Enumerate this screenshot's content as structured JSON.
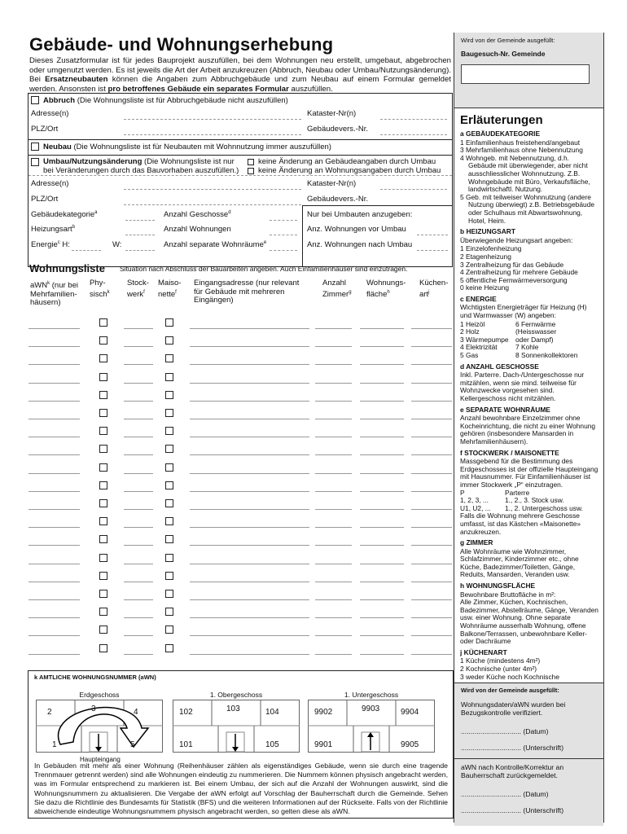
{
  "title": "Gebäude- und Wohnungserhebung",
  "intro": {
    "p1": "Dieses Zusatzformular ist für jedes Bauprojekt auszufüllen, bei dem Wohnungen neu erstellt, umgebaut, abgebrochen oder umgenutzt werden. Es ist jeweils die Art der Arbeit anzukreuzen (Abbruch, Neubau oder Umbau/Nutzungsänderung). Bei ",
    "b1": "Ersatzneubauten",
    "p2": " können die Angaben zum Abbruchgebäude und zum Neubau auf einem Formular gemeldet werden. Ansonsten ist ",
    "b2": "pro betroffenes Gebäude ein separates Formular",
    "p3": " auszufüllen."
  },
  "abbruch": {
    "label": "Abbruch",
    "note": "(Die Wohnungsliste ist für Abbruchgebäude nicht auszufüllen)",
    "adresse": "Adresse(n)",
    "kataster": "Kataster-Nr(n)",
    "plz": "PLZ/Ort",
    "gebvers": "Gebäudevers.-Nr."
  },
  "neubau": {
    "label": "Neubau",
    "note": "(Die Wohnungsliste ist für Neubauten mit Wohnnutzung immer auszufüllen)"
  },
  "umbau": {
    "label": "Umbau/Nutzungsänderung",
    "note1": "(Die Wohnungsliste ist nur",
    "note2": "bei Veränderungen durch das Bauvorhaben auszufüllen.)",
    "opt1": "keine Änderung an Gebäudeangaben durch Umbau",
    "opt2": "keine Änderung an Wohnungsangaben durch Umbau",
    "adresse": "Adresse(n)",
    "kataster": "Kataster-Nr(n)",
    "plz": "PLZ/Ort",
    "gebvers": "Gebäudevers.-Nr.",
    "gebkat": "Gebäudekategorie",
    "gebkat_sup": "a",
    "heizung": "Heizungsart",
    "heizung_sup": "b",
    "energie": "Energie",
    "energie_sup": "c",
    "h": "H:",
    "w": "W:",
    "geschosse": "Anzahl Geschosse",
    "geschosse_sup": "d",
    "wohnungen": "Anzahl Wohnungen",
    "wohnraeume": "Anzahl separate Wohnräume",
    "wohnraeume_sup": "e",
    "nur_umbau": "Nur bei Umbauten anzugeben:",
    "vor": "Anz. Wohnungen vor Umbau",
    "nach": "Anz. Wohnungen nach Umbau"
  },
  "liste": {
    "title": "Wohnungsliste",
    "subtitle": "Situation nach Abschluss der Bauarbeiten angeben. Auch Einfamilienhäuser sind einzutragen.",
    "cols": {
      "awn": "aWN",
      "awn_sup": "k",
      "awn2": " (nur bei Mehrfamilien-häusern)",
      "phys": "Phy-sisch",
      "phys_sup": "k",
      "stock": "Stock-werk",
      "stock_sup": "f",
      "mais": "Maiso-nette",
      "mais_sup": "f",
      "addr": "Eingangsadresse (nur relevant für Gebäude mit mehreren Eingängen)",
      "zimmer": "Anzahl Zimmer",
      "zimmer_sup": "g",
      "flaeche": "Wohnungs-fläche",
      "flaeche_sup": "h",
      "kueche": "Küchen-art",
      "kueche_sup": "j"
    }
  },
  "k": {
    "title": "k AMTLICHE WOHNUNGSNUMMER (aWN)",
    "plans": [
      {
        "name": "Erdgeschoss",
        "nums": [
          "2",
          "3",
          "4",
          "1",
          "5"
        ],
        "extra": "Haupteingang"
      },
      {
        "name": "1. Obergeschoss",
        "nums": [
          "102",
          "103",
          "104",
          "101",
          "105"
        ]
      },
      {
        "name": "1. Untergeschoss",
        "nums": [
          "9902",
          "9903",
          "9904",
          "9901",
          "9905"
        ]
      }
    ],
    "text": "In Gebäuden mit mehr als einer Wohnung (Reihenhäuser zählen als eigenständiges Gebäude, wenn sie durch eine tragende Trennmauer getrennt werden) sind alle Wohnungen eindeutig zu nummerieren. Die Nummem können physisch angebracht werden, was im Formular entsprechend zu markieren ist. Bei einem Umbau, der sich auf die Anzahl der Wohnungen auswirkt, sind die Wohnungsnummern zu aktualisieren. Die Vergabe der aWN erfolgt auf Vorschlag der Bauherrschaft durch die Gemeinde. Sehen Sie dazu die Richtlinie des Bundesamts für Statistik (BFS) und die weiteren Informationen auf der Rückseite. Falls von der Richtlinie abweichende eindeutige Wohnungsnummem physisch angebracht werden, so gelten diese als aWN."
  },
  "right": {
    "top_note": "Wird von der Gemeinde ausgefüllt:",
    "baugesuch": "Baugesuch-Nr. Gemeinde",
    "erl": "Erläuterungen",
    "a": {
      "h": "a GEBÄUDEKATEGORIE",
      "items": [
        "1  Einfamilienhaus freistehend/angebaut",
        "3  Mehrfamilienhaus ohne Nebennutzung",
        "4  Wohngeb. mit Nebennutzung, d.h. Gebäude mit überwiegender, aber nicht ausschliesslicher Wohnnutzung. Z.B. Wohngebäude mit Büro, Verkaufsfläche, landwirtschaftl. Nutzung.",
        "5  Geb. mit teilweiser Wohnnutzung (andere Nutzung überwiegt) z.B. Betriebsgebäude oder Schulhaus mit Abwartswohnung, Hotel, Heim."
      ]
    },
    "b": {
      "h": "b HEIZUNGSART",
      "t": "Überwiegende Heizungsart angeben:",
      "items": [
        "1  Einzelofenheizung",
        "2  Etagenheizung",
        "3  Zentralheizung für das Gebäude",
        "4  Zentralheizung für mehrere Gebäude",
        "5  öffentliche Fernwärmeversorgung",
        "0  keine Heizung"
      ]
    },
    "c": {
      "h": "c ENERGIE",
      "t": "Wichtigsten Energieträger für Heizung (H) und Warmwasser (W) angeben:",
      "left": [
        "1  Heizöl",
        "2  Holz",
        "3  Wärmepumpe",
        "4  Elektrizität",
        "5  Gas"
      ],
      "right": [
        "6  Fernwärme",
        "    (Heisswasser",
        "    oder Dampf)",
        "7  Kohle",
        "8  Sonnenkollektoren"
      ]
    },
    "d": {
      "h": "d ANZAHL GESCHOSSE",
      "t": "Inkl. Parterre. Dach-/Untergeschosse nur mitzählen, wenn sie mind. teilweise für Wohnzwecke vorgesehen sind. Kellergeschoss nicht mitzählen."
    },
    "e": {
      "h": "e SEPARATE WOHNRÄUME",
      "t": "Anzahl bewohnbare Einzelzimmer ohne Kocheinrichtung, die nicht zu einer Wohnung gehören (insbesondere Mansarden in Mehrfamilienhäusern)."
    },
    "f": {
      "h": "f STOCKWERK / MAISONETTE",
      "t": "Massgebend für die Bestimmung des Erdgeschosses ist der offizielle Haupteingang mit Hausnummer. Für Einfamilienhäuser ist immer Stockwerk „P“ einzutragen.",
      "rows": [
        [
          "P",
          "Parterre"
        ],
        [
          "1, 2, 3, ...",
          "1., 2., 3. Stock usw."
        ],
        [
          "U1, U2, ...",
          "1., 2. Untergeschoss usw."
        ]
      ],
      "t2": "Falls die Wohnung mehrere Geschosse umfasst, ist das Kästchen «Maisonette» anzukreuzen."
    },
    "g": {
      "h": "g ZIMMER",
      "t": "Alle Wohnräume wie Wohnzimmer, Schlafzimmer, Kinderzimmer etc., ohne Küche, Badezimmer/Toiletten, Gänge, Reduits, Mansarden, Veranden usw."
    },
    "h": {
      "h": "h WOHNUNGSFLÄCHE",
      "t1": "Bewohnbare Bruttofläche in m²:",
      "t": "Alle Zimmer, Küchen, Kochnischen, Badezimmer, Abstellräume, Gänge, Veranden usw. einer Wohnung. Ohne separate Wohnräume ausserhalb Wohnung, offene Balkone/Terrassen, unbewohnbare Keller- oder Dachräume"
    },
    "j": {
      "h": "j KÜCHENART",
      "items": [
        "1  Küche (mindestens 4m²)",
        "2  Kochnische (unter 4m²)",
        "3  weder Küche noch Kochnische"
      ]
    },
    "bottom": {
      "note": "Wird von der Gemeinde ausgefüllt:",
      "t1": "Wohnungsdaten/aWN wurden bei Bezugskontrolle verifiziert.",
      "datum": "............................... (Datum)",
      "unterschrift": "............................... (Unterschrift)",
      "t2": "aWN nach Kontrolle/Korrektur an Bauherrschaft zurückgemeldet."
    }
  }
}
